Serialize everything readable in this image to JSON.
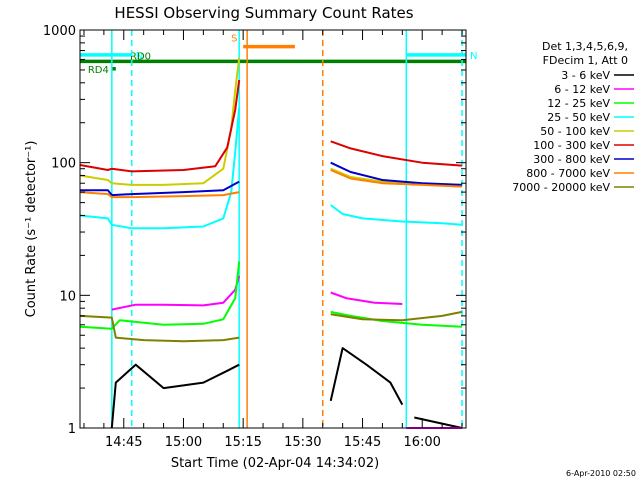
{
  "chart_data": {
    "type": "line",
    "title": "HESSI Observing Summary Count Rates",
    "xlabel": "Start Time (02-Apr-04 14:34:02)",
    "ylabel": "Count Rate (s⁻¹ detector⁻¹)",
    "footer": "6-Apr-2010 02:50",
    "y_scale": "log",
    "ylim": [
      1,
      1000
    ],
    "y_ticks": [
      1,
      10,
      100,
      1000
    ],
    "y_tick_labels": [
      "1",
      "10",
      "100",
      "1000"
    ],
    "xlim": [
      "14:34",
      "16:11"
    ],
    "x_ticks": [
      "14:45",
      "15:00",
      "15:15",
      "15:30",
      "15:45",
      "16:00"
    ],
    "legend": {
      "position": "top-right",
      "header": [
        "Det 1,3,4,5,6,9,",
        "FDecim 1, Att 0"
      ],
      "entries": [
        {
          "label": "3 - 6 keV",
          "color": "#000000"
        },
        {
          "label": "6 - 12 keV",
          "color": "#ff00ff"
        },
        {
          "label": "12 - 25 keV",
          "color": "#00ff00"
        },
        {
          "label": "25 - 50 keV",
          "color": "#00ffff"
        },
        {
          "label": "50 - 100 keV",
          "color": "#cccc00"
        },
        {
          "label": "100 - 300 keV",
          "color": "#dd0000"
        },
        {
          "label": "300 - 800 keV",
          "color": "#0000cc"
        },
        {
          "label": "800 - 7000 keV",
          "color": "#ff8000"
        },
        {
          "label": "7000 - 20000 keV",
          "color": "#808000"
        }
      ]
    },
    "flags": [
      {
        "label": "N",
        "color": "#00ffff",
        "from": "14:34",
        "to": "14:47",
        "y": 650
      },
      {
        "label": "N",
        "color": "#00ffff",
        "from": "15:56",
        "to": "16:11",
        "y": 650
      },
      {
        "label": "RD0",
        "color": "#008000",
        "from": "14:34",
        "to": "16:11",
        "y": 580
      },
      {
        "label": "RD4",
        "color": "#008000",
        "from": "14:42",
        "to": "14:43",
        "y": 510
      },
      {
        "label": "S",
        "color": "#ff8000",
        "from": "15:15",
        "to": "15:28",
        "y": 750
      }
    ],
    "event_lines": {
      "cyan_solid": [
        "14:42",
        "15:14",
        "15:56"
      ],
      "cyan_dashed": [
        "14:47",
        "16:10"
      ],
      "orange_solid": [
        "15:16"
      ],
      "orange_dashed": [
        "15:35"
      ]
    },
    "data_gaps": [
      [
        "15:16",
        "15:36"
      ]
    ],
    "series": [
      {
        "name": "3 - 6 keV",
        "color": "#000000",
        "segments": [
          [
            [
              "14:42",
              1.0
            ],
            [
              "14:43",
              2.2
            ],
            [
              "14:48",
              3.0
            ],
            [
              "14:55",
              2.0
            ],
            [
              "15:05",
              2.2
            ],
            [
              "15:11",
              2.7
            ],
            [
              "15:14",
              3.0
            ]
          ],
          [
            [
              "15:37",
              1.6
            ],
            [
              "15:40",
              4.0
            ],
            [
              "15:46",
              3.0
            ],
            [
              "15:52",
              2.2
            ],
            [
              "15:55",
              1.5
            ]
          ],
          [
            [
              "15:58",
              1.2
            ],
            [
              "16:10",
              1.0
            ]
          ]
        ]
      },
      {
        "name": "6 - 12 keV",
        "color": "#ff00ff",
        "segments": [
          [
            [
              "14:42",
              7.8
            ],
            [
              "14:48",
              8.5
            ],
            [
              "14:55",
              8.5
            ],
            [
              "15:05",
              8.4
            ],
            [
              "15:10",
              8.8
            ],
            [
              "15:13",
              11
            ],
            [
              "15:14",
              14
            ]
          ],
          [
            [
              "15:37",
              10.5
            ],
            [
              "15:41",
              9.5
            ],
            [
              "15:48",
              8.8
            ],
            [
              "15:55",
              8.6
            ]
          ],
          [
            [
              "15:56",
              1.0
            ],
            [
              "16:10",
              1.0
            ]
          ]
        ]
      },
      {
        "name": "12 - 25 keV",
        "color": "#00ff00",
        "segments": [
          [
            [
              "14:34",
              5.8
            ],
            [
              "14:42",
              5.6
            ],
            [
              "14:44",
              6.5
            ],
            [
              "14:55",
              6.0
            ],
            [
              "15:05",
              6.1
            ],
            [
              "15:10",
              6.6
            ],
            [
              "15:13",
              9.5
            ],
            [
              "15:14",
              18
            ]
          ],
          [
            [
              "15:37",
              7.5
            ],
            [
              "15:42",
              7.0
            ],
            [
              "15:50",
              6.4
            ],
            [
              "16:00",
              6.0
            ],
            [
              "16:10",
              5.8
            ]
          ]
        ]
      },
      {
        "name": "25 - 50 keV",
        "color": "#00ffff",
        "segments": [
          [
            [
              "14:34",
              40
            ],
            [
              "14:41",
              38
            ],
            [
              "14:42",
              34
            ],
            [
              "14:47",
              32
            ],
            [
              "14:55",
              32
            ],
            [
              "15:05",
              33
            ],
            [
              "15:10",
              38
            ],
            [
              "15:12",
              60
            ],
            [
              "15:13",
              120
            ],
            [
              "15:14",
              260
            ]
          ],
          [
            [
              "15:37",
              48
            ],
            [
              "15:40",
              41
            ],
            [
              "15:45",
              38
            ],
            [
              "15:55",
              36
            ],
            [
              "16:05",
              35
            ],
            [
              "16:10",
              34
            ]
          ]
        ]
      },
      {
        "name": "50 - 100 keV",
        "color": "#cccc00",
        "segments": [
          [
            [
              "14:34",
              80
            ],
            [
              "14:41",
              74
            ],
            [
              "14:42",
              70
            ],
            [
              "14:47",
              68
            ],
            [
              "14:55",
              68
            ],
            [
              "15:05",
              70
            ],
            [
              "15:10",
              90
            ],
            [
              "15:12",
              180
            ],
            [
              "15:13",
              350
            ],
            [
              "15:14",
              620
            ]
          ],
          [
            [
              "15:37",
              90
            ],
            [
              "15:42",
              78
            ],
            [
              "15:50",
              72
            ],
            [
              "16:00",
              70
            ],
            [
              "16:10",
              68
            ]
          ]
        ]
      },
      {
        "name": "100 - 300 keV",
        "color": "#dd0000",
        "segments": [
          [
            [
              "14:34",
              96
            ],
            [
              "14:41",
              88
            ],
            [
              "14:42",
              90
            ],
            [
              "14:47",
              86
            ],
            [
              "15:00",
              88
            ],
            [
              "15:08",
              94
            ],
            [
              "15:11",
              130
            ],
            [
              "15:13",
              250
            ],
            [
              "15:14",
              420
            ]
          ],
          [
            [
              "15:37",
              145
            ],
            [
              "15:42",
              128
            ],
            [
              "15:50",
              112
            ],
            [
              "16:00",
              100
            ],
            [
              "16:10",
              95
            ]
          ]
        ]
      },
      {
        "name": "300 - 800 keV",
        "color": "#0000cc",
        "segments": [
          [
            [
              "14:34",
              62
            ],
            [
              "14:41",
              62
            ],
            [
              "14:42",
              57
            ],
            [
              "14:47",
              58
            ],
            [
              "15:00",
              60
            ],
            [
              "15:10",
              62
            ],
            [
              "15:14",
              72
            ]
          ],
          [
            [
              "15:37",
              100
            ],
            [
              "15:42",
              85
            ],
            [
              "15:50",
              74
            ],
            [
              "16:00",
              70
            ],
            [
              "16:10",
              68
            ]
          ]
        ]
      },
      {
        "name": "800 - 7000 keV",
        "color": "#ff8000",
        "segments": [
          [
            [
              "14:34",
              60
            ],
            [
              "14:41",
              58
            ],
            [
              "14:42",
              55
            ],
            [
              "14:47",
              55
            ],
            [
              "15:00",
              56
            ],
            [
              "15:10",
              57
            ],
            [
              "15:14",
              60
            ]
          ],
          [
            [
              "15:37",
              88
            ],
            [
              "15:42",
              76
            ],
            [
              "15:50",
              70
            ],
            [
              "16:00",
              68
            ],
            [
              "16:10",
              66
            ]
          ]
        ]
      },
      {
        "name": "7000 - 20000 keV",
        "color": "#808000",
        "segments": [
          [
            [
              "14:34",
              7.0
            ],
            [
              "14:42",
              6.8
            ],
            [
              "14:43",
              4.8
            ],
            [
              "14:50",
              4.6
            ],
            [
              "15:00",
              4.5
            ],
            [
              "15:10",
              4.6
            ],
            [
              "15:14",
              4.8
            ]
          ],
          [
            [
              "15:37",
              7.2
            ],
            [
              "15:45",
              6.6
            ],
            [
              "15:55",
              6.5
            ],
            [
              "16:05",
              7.0
            ],
            [
              "16:10",
              7.5
            ]
          ]
        ]
      }
    ]
  }
}
